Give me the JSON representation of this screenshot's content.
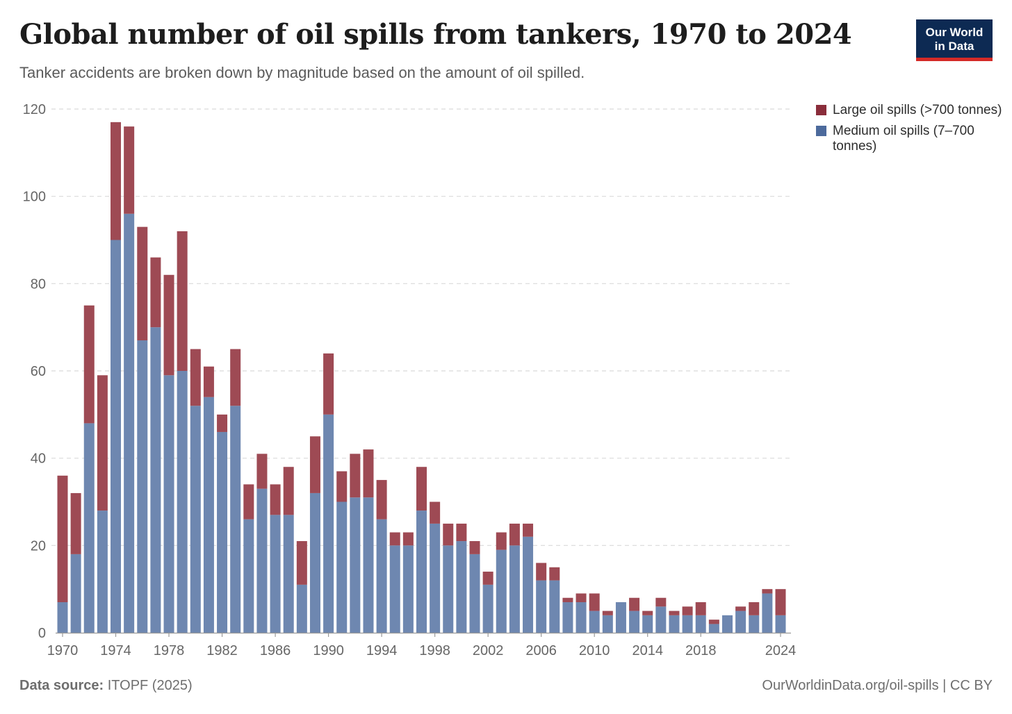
{
  "header": {
    "title": "Global number of oil spills from tankers, 1970 to 2024",
    "subtitle": "Tanker accidents are broken down by magnitude based on the amount of oil spilled."
  },
  "logo": {
    "line1": "Our World",
    "line2": "in Data"
  },
  "footer": {
    "source_label": "Data source:",
    "source_value": "ITOPF (2025)",
    "credit": "OurWorldinData.org/oil-spills | CC BY"
  },
  "colors": {
    "large": "#9e4a54",
    "medium": "#6e87b0",
    "large_legend": "#8a2d3b",
    "medium_legend": "#4c6a9c"
  },
  "chart_data": {
    "type": "bar",
    "stacked": true,
    "x": [
      1970,
      1971,
      1972,
      1973,
      1974,
      1975,
      1976,
      1977,
      1978,
      1979,
      1980,
      1981,
      1982,
      1983,
      1984,
      1985,
      1986,
      1987,
      1988,
      1989,
      1990,
      1991,
      1992,
      1993,
      1994,
      1995,
      1996,
      1997,
      1998,
      1999,
      2000,
      2001,
      2002,
      2003,
      2004,
      2005,
      2006,
      2007,
      2008,
      2009,
      2010,
      2011,
      2012,
      2013,
      2014,
      2015,
      2016,
      2017,
      2018,
      2019,
      2020,
      2021,
      2022,
      2023,
      2024
    ],
    "series": [
      {
        "name": "Medium oil spills (7–700 tonnes)",
        "values": [
          7,
          18,
          48,
          28,
          90,
          96,
          67,
          70,
          59,
          60,
          52,
          54,
          46,
          52,
          26,
          33,
          27,
          27,
          11,
          32,
          50,
          30,
          31,
          31,
          26,
          20,
          20,
          28,
          25,
          20,
          21,
          18,
          11,
          19,
          20,
          22,
          12,
          12,
          7,
          7,
          5,
          4,
          7,
          5,
          4,
          6,
          4,
          4,
          4,
          2,
          4,
          5,
          4,
          9,
          4
        ]
      },
      {
        "name": "Large oil spills (>700 tonnes)",
        "values": [
          29,
          14,
          27,
          31,
          27,
          20,
          26,
          16,
          23,
          32,
          13,
          7,
          4,
          13,
          8,
          8,
          7,
          11,
          10,
          13,
          14,
          7,
          10,
          11,
          9,
          3,
          3,
          10,
          5,
          5,
          4,
          3,
          3,
          4,
          5,
          3,
          4,
          3,
          1,
          2,
          4,
          1,
          0,
          3,
          1,
          2,
          1,
          2,
          3,
          1,
          0,
          1,
          3,
          1,
          6
        ]
      }
    ],
    "legend": [
      "Large oil spills (>700 tonnes)",
      "Medium oil spills (7–700 tonnes)"
    ],
    "legend_position": "right",
    "y_ticks": [
      0,
      20,
      40,
      60,
      80,
      100,
      120
    ],
    "x_ticks": [
      1970,
      1974,
      1978,
      1982,
      1986,
      1990,
      1994,
      1998,
      2002,
      2006,
      2010,
      2014,
      2018,
      2024
    ],
    "ylim": [
      0,
      120
    ],
    "grid": true
  }
}
